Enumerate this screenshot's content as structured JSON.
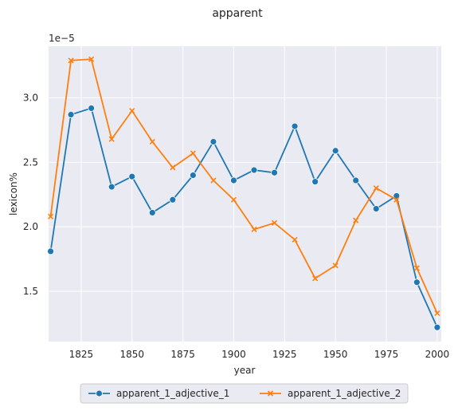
{
  "chart_data": {
    "type": "line",
    "title": "apparent",
    "xlabel": "year",
    "ylabel": "lexicon%",
    "offset_label": "1e−5",
    "x": [
      1810,
      1820,
      1830,
      1840,
      1850,
      1860,
      1870,
      1880,
      1890,
      1900,
      1910,
      1920,
      1930,
      1940,
      1950,
      1960,
      1970,
      1980,
      1990,
      2000
    ],
    "series": [
      {
        "name": "apparent_1_adjective_1",
        "color": "#1f77b4",
        "marker": "circle",
        "values": [
          1.81,
          2.87,
          2.92,
          2.31,
          2.39,
          2.11,
          2.21,
          2.4,
          2.66,
          2.36,
          2.44,
          2.42,
          2.78,
          2.35,
          2.59,
          2.36,
          2.14,
          2.24,
          1.57,
          1.22
        ]
      },
      {
        "name": "apparent_1_adjective_2",
        "color": "#ff7f0e",
        "marker": "x",
        "values": [
          2.08,
          3.29,
          3.3,
          2.68,
          2.9,
          2.66,
          2.46,
          2.57,
          2.36,
          2.21,
          1.98,
          2.03,
          1.9,
          1.6,
          1.7,
          2.05,
          2.3,
          2.21,
          1.68,
          1.33
        ]
      }
    ],
    "xlim": [
      1809,
      2002
    ],
    "ylim": [
      1.11,
      3.4
    ],
    "xticks": [
      1825,
      1850,
      1875,
      1900,
      1925,
      1950,
      1975,
      2000
    ],
    "yticks": [
      1.5,
      2.0,
      2.5,
      3.0
    ],
    "ytick_labels": [
      "1.5",
      "2.0",
      "2.5",
      "3.0"
    ],
    "grid": true,
    "legend_position": "bottom-center"
  }
}
